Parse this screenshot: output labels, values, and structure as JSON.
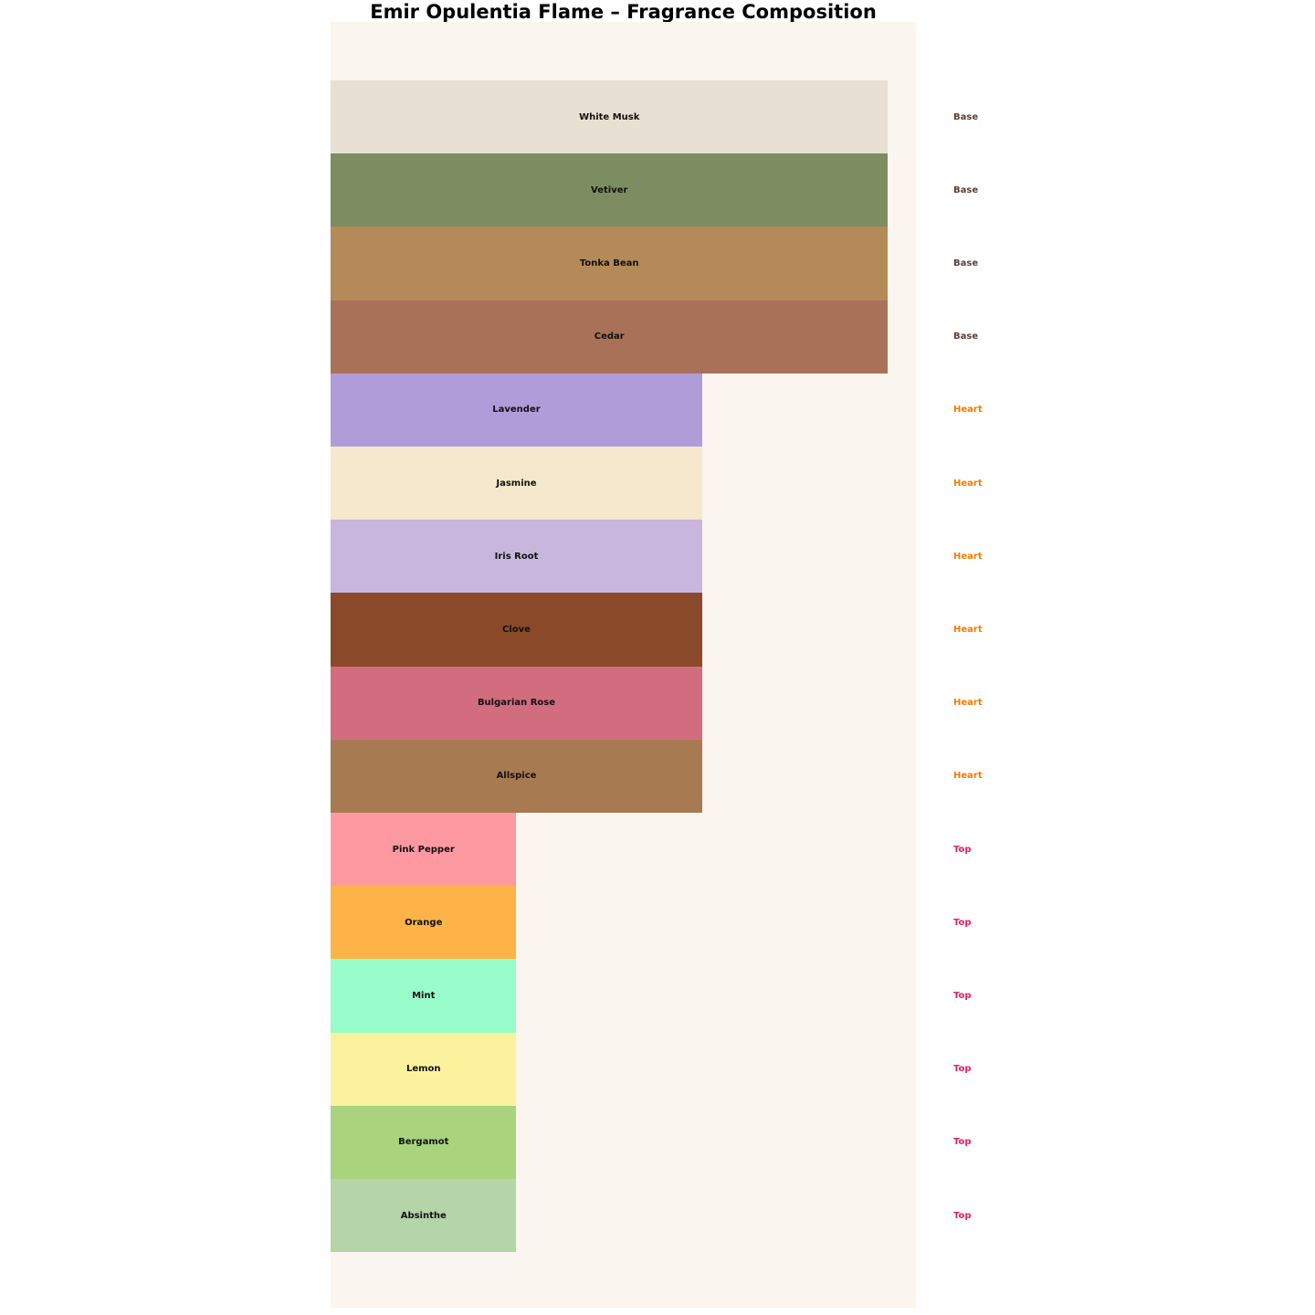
{
  "page": {
    "title": "Emir Opulentia Flame – Fragrance Composition"
  },
  "chart_data": {
    "type": "bar",
    "orientation": "horizontal",
    "title": "Emir Opulentia Flame – Fragrance Composition",
    "xlabel": "",
    "ylabel": "",
    "xlim": [
      0,
      3.15
    ],
    "grid": false,
    "legend": false,
    "axes_visible": false,
    "page_background": "#ffffff",
    "plot_background": "#faf5ee",
    "note_label_color": "#111111",
    "group_label_colors": {
      "Base": "#5d4037",
      "Heart": "#f57c00",
      "Top": "#e91e63"
    },
    "groups": [
      {
        "name": "Base",
        "value": 3,
        "count": 4
      },
      {
        "name": "Heart",
        "value": 2,
        "count": 6
      },
      {
        "name": "Top",
        "value": 1,
        "count": 6
      }
    ],
    "categories": [
      "White Musk",
      "Vetiver",
      "Tonka Bean",
      "Cedar",
      "Lavender",
      "Jasmine",
      "Iris Root",
      "Clove",
      "Bulgarian Rose",
      "Allspice",
      "Pink Pepper",
      "Orange",
      "Mint",
      "Lemon",
      "Bergamot",
      "Absinthe"
    ],
    "values": [
      3,
      3,
      3,
      3,
      2,
      2,
      2,
      2,
      2,
      2,
      1,
      1,
      1,
      1,
      1,
      1
    ],
    "bars": [
      {
        "label": "White Musk",
        "group": "Base",
        "value": 3,
        "color": "#e8e1d3"
      },
      {
        "label": "Vetiver",
        "group": "Base",
        "value": 3,
        "color": "#7d8d62"
      },
      {
        "label": "Tonka Bean",
        "group": "Base",
        "value": 3,
        "color": "#b38a58"
      },
      {
        "label": "Cedar",
        "group": "Base",
        "value": 3,
        "color": "#a97158"
      },
      {
        "label": "Lavender",
        "group": "Heart",
        "value": 2,
        "color": "#b19cda"
      },
      {
        "label": "Jasmine",
        "group": "Heart",
        "value": 2,
        "color": "#f6e8cc"
      },
      {
        "label": "Iris Root",
        "group": "Heart",
        "value": 2,
        "color": "#c8b6dd"
      },
      {
        "label": "Clove",
        "group": "Heart",
        "value": 2,
        "color": "#8a4a29"
      },
      {
        "label": "Bulgarian Rose",
        "group": "Heart",
        "value": 2,
        "color": "#d26d80"
      },
      {
        "label": "Allspice",
        "group": "Heart",
        "value": 2,
        "color": "#a87a52"
      },
      {
        "label": "Pink Pepper",
        "group": "Top",
        "value": 1,
        "color": "#ff99a1"
      },
      {
        "label": "Orange",
        "group": "Top",
        "value": 1,
        "color": "#feb348"
      },
      {
        "label": "Mint",
        "group": "Top",
        "value": 1,
        "color": "#99fccb"
      },
      {
        "label": "Lemon",
        "group": "Top",
        "value": 1,
        "color": "#fcf29d"
      },
      {
        "label": "Bergamot",
        "group": "Top",
        "value": 1,
        "color": "#a9d37d"
      },
      {
        "label": "Absinthe",
        "group": "Top",
        "value": 1,
        "color": "#b5d4a7"
      }
    ]
  }
}
